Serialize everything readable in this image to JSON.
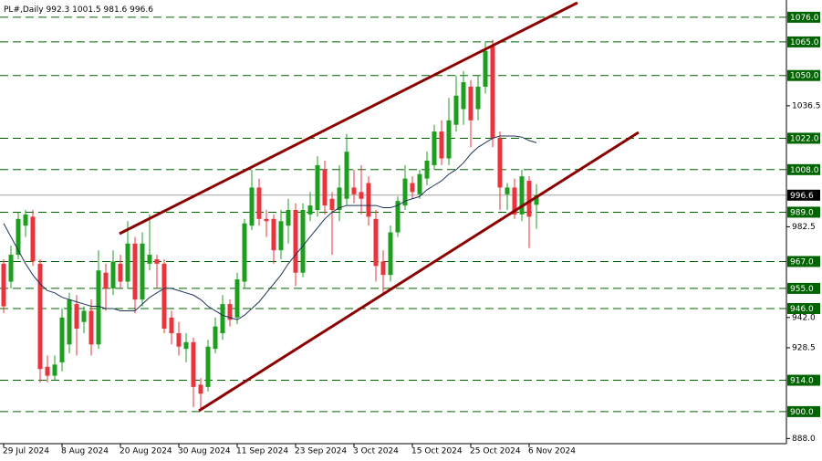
{
  "chart_data": {
    "type": "candlestick",
    "title": "PL#,Daily",
    "categories": [
      "29 Jul 2024",
      null,
      null,
      null,
      null,
      null,
      null,
      null,
      "8 Aug 2024",
      null,
      null,
      null,
      null,
      null,
      null,
      null,
      "20 Aug 2024",
      null,
      null,
      null,
      null,
      null,
      null,
      null,
      "30 Aug 2024",
      null,
      null,
      null,
      null,
      null,
      null,
      null,
      "11 Sep 2024",
      null,
      null,
      null,
      null,
      null,
      null,
      null,
      "23 Sep 2024",
      null,
      null,
      null,
      null,
      null,
      null,
      null,
      "3 Oct 2024",
      null,
      null,
      null,
      null,
      null,
      null,
      null,
      "15 Oct 2024",
      null,
      null,
      null,
      null,
      null,
      null,
      null,
      "25 Oct 2024",
      null,
      null,
      null,
      null,
      null,
      null,
      null,
      "6 Nov 2024",
      null
    ],
    "open": [
      966,
      958,
      970,
      983,
      987,
      966,
      920,
      916,
      922,
      930,
      948,
      940,
      945,
      930,
      962,
      955,
      966,
      958,
      975,
      950,
      966,
      968,
      966,
      942,
      935,
      928,
      931,
      912,
      911,
      928,
      935,
      948,
      942,
      958,
      983,
      1000,
      986,
      986,
      972,
      983,
      990,
      962,
      988,
      990,
      1008,
      995,
      990,
      995,
      1000,
      998,
      1002,
      986,
      967,
      961,
      980,
      992,
      1002,
      997,
      1004,
      1010,
      1025,
      1013,
      1028,
      1035,
      1045,
      1035,
      1045,
      1063,
      1022,
      997,
      1000,
      988,
      1003,
      992.3
    ],
    "high": [
      968,
      974,
      989,
      990,
      990,
      968,
      925,
      925,
      946,
      953,
      952,
      947,
      950,
      972,
      966,
      972,
      970,
      985,
      978,
      980,
      988,
      970,
      968,
      945,
      940,
      935,
      933,
      915,
      932,
      942,
      952,
      950,
      962,
      986,
      1008,
      1004,
      990,
      988,
      990,
      995,
      993,
      993,
      998,
      1014,
      1012,
      998,
      1010,
      1024,
      1008,
      1010,
      1005,
      990,
      972,
      983,
      996,
      1010,
      1005,
      1008,
      1016,
      1028,
      1030,
      1040,
      1050,
      1052,
      1048,
      1050,
      1065,
      1066,
      1025,
      1002,
      1004,
      1008,
      1005,
      1001.5
    ],
    "low": [
      944,
      955,
      968,
      978,
      965,
      913,
      913,
      914,
      918,
      926,
      925,
      935,
      925,
      928,
      945,
      952,
      955,
      955,
      944,
      947,
      963,
      955,
      935,
      930,
      925,
      922,
      902,
      901,
      909,
      926,
      932,
      938,
      939,
      955,
      981,
      983,
      978,
      966,
      968,
      975,
      956,
      960,
      985,
      987,
      988,
      970,
      985,
      992,
      993,
      988,
      983,
      958,
      952,
      958,
      978,
      990,
      995,
      995,
      1001,
      1008,
      1010,
      1010,
      1025,
      1028,
      1018,
      1030,
      1042,
      1018,
      990,
      990,
      986,
      985,
      973,
      981.6
    ],
    "close": [
      947,
      970,
      986,
      988,
      967,
      919,
      916,
      921,
      942,
      950,
      937,
      945,
      930,
      963,
      955,
      967,
      958,
      975,
      950,
      975,
      970,
      966,
      937,
      935,
      929,
      931,
      911,
      908,
      929,
      938,
      948,
      941,
      959,
      984,
      1000,
      986,
      985,
      972,
      985,
      990,
      962,
      990,
      992,
      1010,
      992,
      990,
      1000,
      1016,
      997,
      995,
      987,
      965,
      961,
      980,
      994,
      1004,
      998,
      1006,
      1012,
      1025,
      1013,
      1030,
      1041,
      1047,
      1030,
      1045,
      1061,
      1022,
      1000,
      1000,
      988,
      1005,
      987,
      996.6
    ],
    "ma": [
      984,
      978,
      972,
      966,
      961,
      957,
      954,
      953,
      951,
      950,
      949,
      948,
      947,
      947,
      946,
      946,
      945,
      945,
      945,
      948,
      951,
      953,
      955,
      955,
      954,
      953,
      952,
      950,
      947,
      945,
      943,
      942,
      941,
      943,
      946,
      949,
      953,
      957,
      961,
      966,
      970,
      974,
      978,
      982,
      986,
      989,
      991,
      992,
      992,
      992,
      992,
      992,
      991,
      991,
      992,
      994,
      995,
      996,
      999,
      1001,
      1003,
      1006,
      1008,
      1011,
      1015,
      1018,
      1020,
      1022,
      1023,
      1023,
      1023,
      1022.5,
      1021,
      1020
    ],
    "up_color": "#1e9e1e",
    "down_color": "#e8343c",
    "ma_color": "#1d3557",
    "level_color": "#006400",
    "ylim": [
      885.7,
      1083.7
    ],
    "yticks": [
      {
        "value": 888,
        "label": "888.0"
      },
      {
        "value": 928.5,
        "label": "928.5"
      },
      {
        "value": 942,
        "label": "942.0"
      },
      {
        "value": 982.5,
        "label": "982.5"
      },
      {
        "value": 1036.5,
        "label": "1036.5"
      }
    ],
    "levels": [
      {
        "value": 1076,
        "label": "1076.0"
      },
      {
        "value": 1065,
        "label": "1065.0"
      },
      {
        "value": 1050,
        "label": "1050.0"
      },
      {
        "value": 1022,
        "label": "1022.0"
      },
      {
        "value": 1008,
        "label": "1008.0"
      },
      {
        "value": 989,
        "label": "989.0"
      },
      {
        "value": 967,
        "label": "967.0"
      },
      {
        "value": 955,
        "label": "955.0"
      },
      {
        "value": 946,
        "label": "946.0"
      },
      {
        "value": 914,
        "label": "914.0"
      },
      {
        "value": 900,
        "label": "900.0"
      }
    ]
  }
}
